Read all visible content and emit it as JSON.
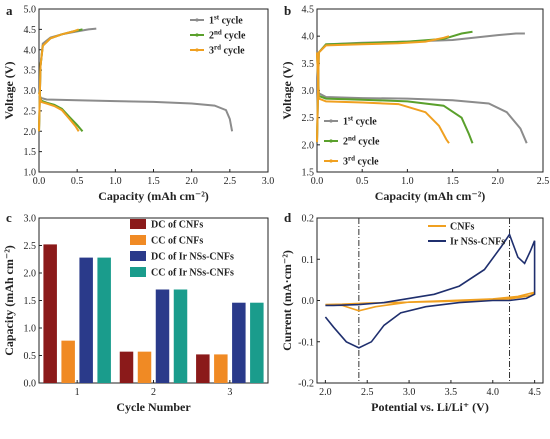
{
  "panels": [
    {
      "letter": "a",
      "type": "line",
      "xlabel": "Capacity (mAh cm⁻²)",
      "ylabel": "Voltage (V)",
      "xlim": [
        0,
        3.0
      ],
      "ylim": [
        1.0,
        5.0
      ],
      "xticks": [
        "0.0",
        "0.5",
        "1.0",
        "1.5",
        "2.0",
        "2.5",
        "3.0"
      ],
      "yticks": [
        "1.0",
        "1.5",
        "2.0",
        "2.5",
        "3.0",
        "3.5",
        "4.0",
        "4.5",
        "5.0"
      ],
      "legend_position": "top-right",
      "series": [
        {
          "label_main": "1",
          "label_sup": "st",
          "label_rest": " cycle",
          "color": "#8c8c8c",
          "discharge": [
            [
              0,
              2.95
            ],
            [
              0.02,
              2.82
            ],
            [
              0.1,
              2.78
            ],
            [
              0.5,
              2.76
            ],
            [
              1.0,
              2.74
            ],
            [
              1.5,
              2.72
            ],
            [
              2.0,
              2.68
            ],
            [
              2.3,
              2.63
            ],
            [
              2.45,
              2.52
            ],
            [
              2.5,
              2.3
            ],
            [
              2.53,
              2.0
            ]
          ],
          "charge": [
            [
              0,
              2.0
            ],
            [
              0.02,
              3.6
            ],
            [
              0.05,
              4.15
            ],
            [
              0.15,
              4.3
            ],
            [
              0.3,
              4.38
            ],
            [
              0.5,
              4.45
            ],
            [
              0.65,
              4.5
            ],
            [
              0.75,
              4.52
            ]
          ]
        },
        {
          "label_main": "2",
          "label_sup": "nd",
          "label_rest": " cycle",
          "color": "#5aa02c",
          "discharge": [
            [
              0,
              2.95
            ],
            [
              0.03,
              2.75
            ],
            [
              0.1,
              2.7
            ],
            [
              0.2,
              2.65
            ],
            [
              0.3,
              2.55
            ],
            [
              0.4,
              2.35
            ],
            [
              0.5,
              2.15
            ],
            [
              0.57,
              2.0
            ]
          ],
          "charge": [
            [
              0,
              2.0
            ],
            [
              0.02,
              3.6
            ],
            [
              0.05,
              4.1
            ],
            [
              0.15,
              4.28
            ],
            [
              0.3,
              4.38
            ],
            [
              0.45,
              4.45
            ],
            [
              0.57,
              4.5
            ]
          ]
        },
        {
          "label_main": "3",
          "label_sup": "rd",
          "label_rest": " cycle",
          "color": "#f0a020",
          "discharge": [
            [
              0,
              2.95
            ],
            [
              0.03,
              2.72
            ],
            [
              0.1,
              2.68
            ],
            [
              0.2,
              2.62
            ],
            [
              0.3,
              2.52
            ],
            [
              0.4,
              2.3
            ],
            [
              0.48,
              2.12
            ],
            [
              0.52,
              2.0
            ]
          ],
          "charge": [
            [
              0,
              2.0
            ],
            [
              0.02,
              3.6
            ],
            [
              0.05,
              4.1
            ],
            [
              0.15,
              4.28
            ],
            [
              0.3,
              4.38
            ],
            [
              0.45,
              4.45
            ],
            [
              0.52,
              4.5
            ]
          ]
        }
      ]
    },
    {
      "letter": "b",
      "type": "line",
      "xlabel": "Capacity (mAh cm⁻²)",
      "ylabel": "Voltage (V)",
      "xlim": [
        0,
        2.5
      ],
      "ylim": [
        1.5,
        4.5
      ],
      "xticks": [
        "0.0",
        "0.5",
        "1.0",
        "1.5",
        "2.0",
        "2.5"
      ],
      "yticks": [
        "1.5",
        "2.0",
        "2.5",
        "3.0",
        "3.5",
        "4.0",
        "4.5"
      ],
      "legend_position": "bottom-left",
      "series": [
        {
          "label_main": "1",
          "label_sup": "st",
          "label_rest": " cycle",
          "color": "#8c8c8c",
          "discharge": [
            [
              0,
              3.75
            ],
            [
              0.02,
              2.95
            ],
            [
              0.1,
              2.88
            ],
            [
              0.5,
              2.86
            ],
            [
              1.0,
              2.85
            ],
            [
              1.5,
              2.82
            ],
            [
              1.9,
              2.76
            ],
            [
              2.1,
              2.6
            ],
            [
              2.25,
              2.3
            ],
            [
              2.32,
              2.03
            ]
          ],
          "charge": [
            [
              0,
              2.05
            ],
            [
              0.02,
              3.7
            ],
            [
              0.1,
              3.85
            ],
            [
              0.5,
              3.88
            ],
            [
              1.0,
              3.9
            ],
            [
              1.5,
              3.93
            ],
            [
              2.0,
              4.02
            ],
            [
              2.2,
              4.05
            ],
            [
              2.3,
              4.05
            ]
          ]
        },
        {
          "label_main": "2",
          "label_sup": "nd",
          "label_rest": " cycle",
          "color": "#5aa02c",
          "discharge": [
            [
              0,
              3.7
            ],
            [
              0.02,
              2.9
            ],
            [
              0.1,
              2.85
            ],
            [
              0.5,
              2.83
            ],
            [
              1.0,
              2.8
            ],
            [
              1.4,
              2.72
            ],
            [
              1.6,
              2.5
            ],
            [
              1.68,
              2.2
            ],
            [
              1.72,
              2.03
            ]
          ],
          "charge": [
            [
              0,
              2.05
            ],
            [
              0.02,
              3.7
            ],
            [
              0.1,
              3.85
            ],
            [
              0.5,
              3.87
            ],
            [
              1.0,
              3.9
            ],
            [
              1.4,
              3.95
            ],
            [
              1.6,
              4.05
            ],
            [
              1.72,
              4.08
            ]
          ]
        },
        {
          "label_main": "3",
          "label_sup": "rd",
          "label_rest": " cycle",
          "color": "#f0a020",
          "discharge": [
            [
              0,
              3.7
            ],
            [
              0.02,
              2.85
            ],
            [
              0.1,
              2.8
            ],
            [
              0.5,
              2.78
            ],
            [
              0.9,
              2.75
            ],
            [
              1.2,
              2.6
            ],
            [
              1.35,
              2.35
            ],
            [
              1.43,
              2.1
            ],
            [
              1.46,
              2.03
            ]
          ],
          "charge": [
            [
              0,
              2.05
            ],
            [
              0.02,
              3.7
            ],
            [
              0.1,
              3.83
            ],
            [
              0.5,
              3.85
            ],
            [
              0.9,
              3.87
            ],
            [
              1.2,
              3.9
            ],
            [
              1.4,
              3.97
            ],
            [
              1.46,
              4.0
            ]
          ]
        }
      ]
    },
    {
      "letter": "c",
      "type": "bar",
      "xlabel": "Cycle Number",
      "ylabel": "Capacity (mAh cm⁻²)",
      "ylim": [
        0,
        3.0
      ],
      "yticks": [
        "0.0",
        "0.5",
        "1.0",
        "1.5",
        "2.0",
        "2.5",
        "3.0"
      ],
      "categories": [
        "1",
        "2",
        "3"
      ],
      "legend_position": "top-right",
      "series": [
        {
          "name": "DC of CNFs",
          "color": "#8b1a1a",
          "values": [
            2.52,
            0.57,
            0.52
          ]
        },
        {
          "name": "CC of CNFs",
          "color": "#f08a24",
          "values": [
            0.77,
            0.57,
            0.52
          ]
        },
        {
          "name": "DC of Ir NSs-CNFs",
          "color": "#2a3a8a",
          "values": [
            2.28,
            1.7,
            1.46
          ]
        },
        {
          "name": "CC of Ir NSs-CNFs",
          "color": "#1a9c8c",
          "values": [
            2.28,
            1.7,
            1.46
          ]
        }
      ]
    },
    {
      "letter": "d",
      "type": "line",
      "xlabel": "Potential vs. Li/Li⁺ (V)",
      "ylabel": "Current (mA·cm⁻²)",
      "xlim": [
        1.9,
        4.6
      ],
      "ylim": [
        -0.2,
        0.2
      ],
      "xticks": [
        "2.0",
        "2.5",
        "3.0",
        "3.5",
        "4.0",
        "4.5"
      ],
      "yticks": [
        "-0.2",
        "-0.1",
        "0.0",
        "0.1",
        "0.2"
      ],
      "vlines": [
        2.4,
        4.2
      ],
      "legend_position": "top-right",
      "series": [
        {
          "name": "CNFs",
          "color": "#f0a020",
          "points": [
            [
              2.0,
              -0.01
            ],
            [
              2.2,
              -0.012
            ],
            [
              2.4,
              -0.025
            ],
            [
              2.6,
              -0.015
            ],
            [
              3.0,
              -0.004
            ],
            [
              3.5,
              0.0
            ],
            [
              4.0,
              0.004
            ],
            [
              4.3,
              0.01
            ],
            [
              4.5,
              0.02
            ],
            [
              4.45,
              0.012
            ],
            [
              4.2,
              0.004
            ],
            [
              3.8,
              0.0
            ],
            [
              3.3,
              -0.003
            ],
            [
              2.8,
              -0.005
            ],
            [
              2.5,
              -0.006
            ],
            [
              2.2,
              -0.009
            ],
            [
              2.0,
              -0.01
            ]
          ]
        },
        {
          "name": "Ir NSs-CNFs",
          "color": "#1f2f6e",
          "points": [
            [
              2.0,
              -0.04
            ],
            [
              2.1,
              -0.065
            ],
            [
              2.25,
              -0.1
            ],
            [
              2.4,
              -0.115
            ],
            [
              2.55,
              -0.1
            ],
            [
              2.7,
              -0.06
            ],
            [
              2.9,
              -0.03
            ],
            [
              3.2,
              -0.015
            ],
            [
              3.6,
              -0.005
            ],
            [
              4.0,
              0.0
            ],
            [
              4.2,
              0.0
            ],
            [
              4.4,
              0.005
            ],
            [
              4.5,
              0.015
            ],
            [
              4.5,
              0.145
            ],
            [
              4.45,
              0.12
            ],
            [
              4.38,
              0.09
            ],
            [
              4.3,
              0.105
            ],
            [
              4.2,
              0.16
            ],
            [
              4.1,
              0.13
            ],
            [
              3.9,
              0.075
            ],
            [
              3.6,
              0.035
            ],
            [
              3.3,
              0.015
            ],
            [
              3.0,
              0.005
            ],
            [
              2.7,
              -0.005
            ],
            [
              2.4,
              -0.01
            ],
            [
              2.1,
              -0.012
            ],
            [
              2.0,
              -0.012
            ]
          ]
        }
      ]
    }
  ]
}
